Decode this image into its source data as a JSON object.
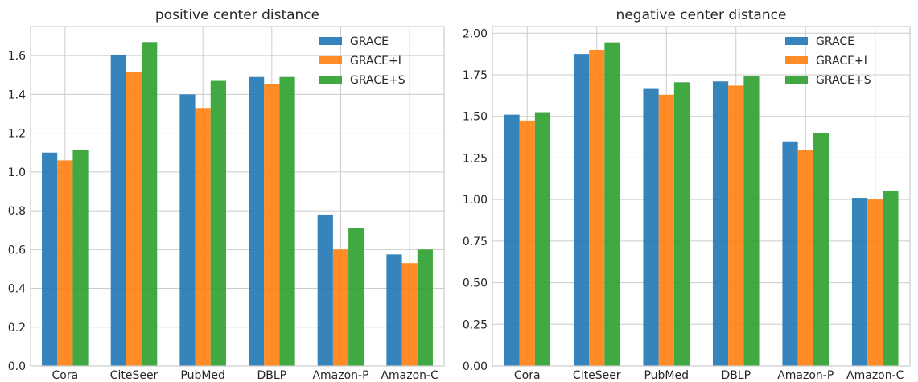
{
  "chart_data": [
    {
      "type": "bar",
      "title": "positive center distance",
      "xlabel": "",
      "ylabel": "",
      "categories": [
        "Cora",
        "CiteSeer",
        "PubMed",
        "DBLP",
        "Amazon-P",
        "Amazon-C"
      ],
      "ylim": [
        0,
        1.75
      ],
      "yticks": [
        "0.0",
        "0.2",
        "0.4",
        "0.6",
        "0.8",
        "1.0",
        "1.2",
        "1.4",
        "1.6"
      ],
      "grid": true,
      "legend": "top-right",
      "series": [
        {
          "name": "GRACE",
          "color": "#1f77b4",
          "values": [
            1.1,
            1.605,
            1.4,
            1.49,
            0.78,
            0.575
          ]
        },
        {
          "name": "GRACE+I",
          "color": "#ff7f0e",
          "values": [
            1.06,
            1.515,
            1.33,
            1.455,
            0.6,
            0.53
          ]
        },
        {
          "name": "GRACE+S",
          "color": "#2ca02c",
          "values": [
            1.115,
            1.67,
            1.47,
            1.49,
            0.71,
            0.6
          ]
        }
      ]
    },
    {
      "type": "bar",
      "title": "negative center distance",
      "xlabel": "",
      "ylabel": "",
      "categories": [
        "Cora",
        "CiteSeer",
        "PubMed",
        "DBLP",
        "Amazon-P",
        "Amazon-C"
      ],
      "ylim": [
        0,
        2.04
      ],
      "yticks": [
        "0.00",
        "0.25",
        "0.50",
        "0.75",
        "1.00",
        "1.25",
        "1.50",
        "1.75",
        "2.00"
      ],
      "grid": true,
      "legend": "top-right",
      "series": [
        {
          "name": "GRACE",
          "color": "#1f77b4",
          "values": [
            1.51,
            1.875,
            1.665,
            1.71,
            1.35,
            1.01
          ]
        },
        {
          "name": "GRACE+I",
          "color": "#ff7f0e",
          "values": [
            1.475,
            1.9,
            1.63,
            1.685,
            1.3,
            1.0
          ]
        },
        {
          "name": "GRACE+S",
          "color": "#2ca02c",
          "values": [
            1.525,
            1.945,
            1.705,
            1.745,
            1.4,
            1.05
          ]
        }
      ]
    }
  ]
}
